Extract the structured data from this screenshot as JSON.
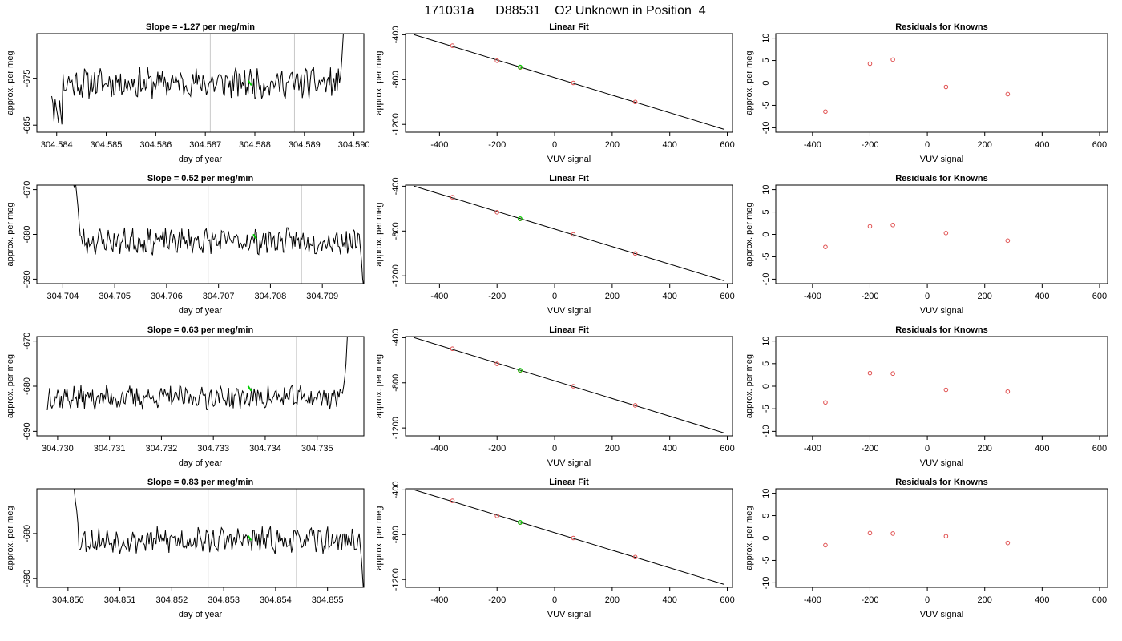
{
  "title": "171031a      D88531    O2 Unknown in Position  4",
  "colors": {
    "trace": "#000000",
    "marker_green": "#00cc00",
    "point_red": "#e05050",
    "vline_gray": "#c8c8c8"
  },
  "chart_data": [
    {
      "type": "line",
      "title": "Slope =  -1.27  per meg/min",
      "xlabel": "day of year",
      "ylabel": "approx. per meg",
      "xlim": [
        304.5836,
        304.5902
      ],
      "ylim": [
        -686.5,
        -665.5
      ],
      "xticks": [
        304.584,
        304.585,
        304.586,
        304.587,
        304.588,
        304.589,
        304.59
      ],
      "xtick_labels": [
        "304.584",
        "304.585",
        "304.586",
        "304.587",
        "304.588",
        "304.589",
        "304.590"
      ],
      "yticks": [
        -685,
        -675
      ],
      "ytick_labels": [
        "-685",
        "-675"
      ],
      "vlines": [
        304.5871,
        304.5888
      ],
      "series": [
        {
          "x_start": 304.5839,
          "x_end": 304.5898,
          "baseline": -676.0,
          "start_values": [
            -678.5,
            -680.0,
            -684.0,
            -679.0,
            -681.5,
            -683.0,
            -684.0,
            -680.0,
            -682.0,
            -684.5
          ],
          "end_values": [
            -676.0,
            -674.5,
            -671.0,
            -667.0,
            -663.0
          ],
          "amplitude": 2.8,
          "seed": 11,
          "n": 260
        }
      ],
      "marker": {
        "x": 304.5879,
        "y": -676.0
      }
    },
    {
      "type": "scatter",
      "title": "Linear Fit",
      "xlabel": "VUV signal",
      "ylabel": "approx. per meg",
      "xlim": [
        -518,
        618
      ],
      "ylim": [
        -1270,
        -390
      ],
      "xticks": [
        -400,
        -200,
        0,
        200,
        400,
        600
      ],
      "xtick_labels": [
        "-400",
        "-200",
        "0",
        "200",
        "400",
        "600"
      ],
      "yticks": [
        -400,
        -800,
        -1200
      ],
      "ytick_labels": [
        "-400",
        "-800",
        "-1200"
      ],
      "points": [
        {
          "x": -355,
          "y": -498
        },
        {
          "x": -200,
          "y": -632
        },
        {
          "x": -120,
          "y": -692
        },
        {
          "x": 65,
          "y": -830
        },
        {
          "x": 280,
          "y": -1000
        }
      ],
      "fit_line": {
        "x": [
          -490,
          590
        ],
        "y": [
          -398,
          -1245
        ]
      },
      "marker": {
        "x": -120,
        "y": -688
      }
    },
    {
      "type": "scatter",
      "title": "Residuals for Knowns",
      "xlabel": "VUV signal",
      "ylabel": "approx. per meg",
      "xlim": [
        -528,
        628
      ],
      "ylim": [
        -11,
        11
      ],
      "xticks": [
        -400,
        -200,
        0,
        200,
        400,
        600
      ],
      "xtick_labels": [
        "-400",
        "-200",
        "0",
        "200",
        "400",
        "600"
      ],
      "yticks": [
        10,
        5,
        0,
        -5,
        -10
      ],
      "ytick_labels": [
        "10",
        "5",
        "0",
        "-5",
        "-10"
      ],
      "points": [
        {
          "x": -355,
          "y": -6.4
        },
        {
          "x": -200,
          "y": 4.3
        },
        {
          "x": -120,
          "y": 5.2
        },
        {
          "x": 65,
          "y": -0.9
        },
        {
          "x": 280,
          "y": -2.5
        }
      ]
    },
    {
      "type": "line",
      "title": "Slope =  0.52  per meg/min",
      "xlabel": "day of year",
      "ylabel": "approx. per meg",
      "xlim": [
        304.7035,
        304.7098
      ],
      "ylim": [
        -691,
        -669
      ],
      "xticks": [
        304.704,
        304.705,
        304.706,
        304.707,
        304.708,
        304.709
      ],
      "xtick_labels": [
        "304.704",
        "304.705",
        "304.706",
        "304.707",
        "304.708",
        "304.709"
      ],
      "yticks": [
        -670,
        -680,
        -690
      ],
      "ytick_labels": [
        "-670",
        "-680",
        "-690"
      ],
      "vlines": [
        304.7068,
        304.7086
      ],
      "series": [
        {
          "x_start": 304.7042,
          "x_end": 304.7098,
          "baseline": -681.5,
          "start_values": [
            -668.0,
            -669.5,
            -668.5,
            -671.0,
            -674.0,
            -677.5,
            -680.0
          ],
          "end_values": [
            -680.0,
            -683.0,
            -686.0,
            -690.0,
            -692.0
          ],
          "amplitude": 2.4,
          "seed": 23,
          "n": 250
        }
      ],
      "marker": {
        "x": 304.7077,
        "y": -680.5
      }
    },
    {
      "type": "scatter",
      "title": "Linear Fit",
      "xlabel": "VUV signal",
      "ylabel": "approx. per meg",
      "xlim": [
        -518,
        618
      ],
      "ylim": [
        -1270,
        -390
      ],
      "xticks": [
        -400,
        -200,
        0,
        200,
        400,
        600
      ],
      "xtick_labels": [
        "-400",
        "-200",
        "0",
        "200",
        "400",
        "600"
      ],
      "yticks": [
        -400,
        -800,
        -1200
      ],
      "ytick_labels": [
        "-400",
        "-800",
        "-1200"
      ],
      "points": [
        {
          "x": -355,
          "y": -498
        },
        {
          "x": -200,
          "y": -632
        },
        {
          "x": -120,
          "y": -692
        },
        {
          "x": 65,
          "y": -830
        },
        {
          "x": 280,
          "y": -1000
        }
      ],
      "fit_line": {
        "x": [
          -490,
          590
        ],
        "y": [
          -398,
          -1245
        ]
      },
      "marker": {
        "x": -120,
        "y": -690
      }
    },
    {
      "type": "scatter",
      "title": "Residuals for Knowns",
      "xlabel": "VUV signal",
      "ylabel": "approx. per meg",
      "xlim": [
        -528,
        628
      ],
      "ylim": [
        -11,
        11
      ],
      "xticks": [
        -400,
        -200,
        0,
        200,
        400,
        600
      ],
      "xtick_labels": [
        "-400",
        "-200",
        "0",
        "200",
        "400",
        "600"
      ],
      "yticks": [
        10,
        5,
        0,
        -5,
        -10
      ],
      "ytick_labels": [
        "10",
        "5",
        "0",
        "-5",
        "-10"
      ],
      "points": [
        {
          "x": -355,
          "y": -2.8
        },
        {
          "x": -200,
          "y": 1.8
        },
        {
          "x": -120,
          "y": 2.1
        },
        {
          "x": 65,
          "y": 0.3
        },
        {
          "x": 280,
          "y": -1.4
        }
      ]
    },
    {
      "type": "line",
      "title": "Slope =  0.63  per meg/min",
      "xlabel": "day of year",
      "ylabel": "approx. per meg",
      "xlim": [
        304.7296,
        304.7359
      ],
      "ylim": [
        -691,
        -669
      ],
      "xticks": [
        304.73,
        304.731,
        304.732,
        304.733,
        304.734,
        304.735
      ],
      "xtick_labels": [
        "304.730",
        "304.731",
        "304.732",
        "304.733",
        "304.734",
        "304.735"
      ],
      "yticks": [
        -670,
        -680,
        -690
      ],
      "ytick_labels": [
        "-670",
        "-680",
        "-690"
      ],
      "vlines": [
        304.7329,
        304.7346
      ],
      "series": [
        {
          "x_start": 304.7298,
          "x_end": 304.7356,
          "baseline": -682.5,
          "start_values": [
            -685.0,
            -683.0,
            -680.0
          ],
          "end_values": [
            -680.0,
            -678.0,
            -675.0,
            -670.0,
            -665.0
          ],
          "amplitude": 2.2,
          "seed": 37,
          "n": 260
        }
      ],
      "marker": {
        "x": 304.7337,
        "y": -680.5
      }
    },
    {
      "type": "scatter",
      "title": "Linear Fit",
      "xlabel": "VUV signal",
      "ylabel": "approx. per meg",
      "xlim": [
        -518,
        618
      ],
      "ylim": [
        -1270,
        -390
      ],
      "xticks": [
        -400,
        -200,
        0,
        200,
        400,
        600
      ],
      "xtick_labels": [
        "-400",
        "-200",
        "0",
        "200",
        "400",
        "600"
      ],
      "yticks": [
        -400,
        -800,
        -1200
      ],
      "ytick_labels": [
        "-400",
        "-800",
        "-1200"
      ],
      "points": [
        {
          "x": -355,
          "y": -498
        },
        {
          "x": -200,
          "y": -632
        },
        {
          "x": -120,
          "y": -692
        },
        {
          "x": 65,
          "y": -830
        },
        {
          "x": 280,
          "y": -1000
        }
      ],
      "fit_line": {
        "x": [
          -490,
          590
        ],
        "y": [
          -398,
          -1245
        ]
      },
      "marker": {
        "x": -120,
        "y": -688
      }
    },
    {
      "type": "scatter",
      "title": "Residuals for Knowns",
      "xlabel": "VUV signal",
      "ylabel": "approx. per meg",
      "xlim": [
        -528,
        628
      ],
      "ylim": [
        -11,
        11
      ],
      "xticks": [
        -400,
        -200,
        0,
        200,
        400,
        600
      ],
      "xtick_labels": [
        "-400",
        "-200",
        "0",
        "200",
        "400",
        "600"
      ],
      "yticks": [
        10,
        5,
        0,
        -5,
        -10
      ],
      "ytick_labels": [
        "10",
        "5",
        "0",
        "-5",
        "-10"
      ],
      "points": [
        {
          "x": -355,
          "y": -3.6
        },
        {
          "x": -200,
          "y": 2.9
        },
        {
          "x": -120,
          "y": 2.8
        },
        {
          "x": 65,
          "y": -0.8
        },
        {
          "x": 280,
          "y": -1.2
        }
      ]
    },
    {
      "type": "line",
      "title": "Slope =  0.83  per meg/min",
      "xlabel": "day of year",
      "ylabel": "approx. per meg",
      "xlim": [
        304.8494,
        304.8557
      ],
      "ylim": [
        -692,
        -670
      ],
      "xticks": [
        304.85,
        304.851,
        304.852,
        304.853,
        304.854,
        304.855
      ],
      "xtick_labels": [
        "304.850",
        "304.851",
        "304.852",
        "304.853",
        "304.854",
        "304.855"
      ],
      "yticks": [
        -680,
        -690
      ],
      "ytick_labels": [
        "-680",
        "-690"
      ],
      "vlines": [
        304.8527,
        304.8544
      ],
      "series": [
        {
          "x_start": 304.8501,
          "x_end": 304.8557,
          "baseline": -681.5,
          "start_values": [
            -668.0,
            -670.0,
            -672.5,
            -675.0,
            -678.0
          ],
          "end_values": [
            -680.0,
            -683.0,
            -686.0,
            -690.0,
            -694.0
          ],
          "amplitude": 2.4,
          "seed": 53,
          "n": 250
        }
      ],
      "marker": {
        "x": 304.8535,
        "y": -681.0
      }
    },
    {
      "type": "scatter",
      "title": "Linear Fit",
      "xlabel": "VUV signal",
      "ylabel": "approx. per meg",
      "xlim": [
        -518,
        618
      ],
      "ylim": [
        -1270,
        -390
      ],
      "xticks": [
        -400,
        -200,
        0,
        200,
        400,
        600
      ],
      "xtick_labels": [
        "-400",
        "-200",
        "0",
        "200",
        "400",
        "600"
      ],
      "yticks": [
        -400,
        -800,
        -1200
      ],
      "ytick_labels": [
        "-400",
        "-800",
        "-1200"
      ],
      "points": [
        {
          "x": -355,
          "y": -498
        },
        {
          "x": -200,
          "y": -632
        },
        {
          "x": -120,
          "y": -692
        },
        {
          "x": 65,
          "y": -830
        },
        {
          "x": 280,
          "y": -1000
        }
      ],
      "fit_line": {
        "x": [
          -490,
          590
        ],
        "y": [
          -398,
          -1245
        ]
      },
      "marker": {
        "x": -120,
        "y": -690
      }
    },
    {
      "type": "scatter",
      "title": "Residuals for Knowns",
      "xlabel": "VUV signal",
      "ylabel": "approx. per meg",
      "xlim": [
        -528,
        628
      ],
      "ylim": [
        -11,
        11
      ],
      "xticks": [
        -400,
        -200,
        0,
        200,
        400,
        600
      ],
      "xtick_labels": [
        "-400",
        "-200",
        "0",
        "200",
        "400",
        "600"
      ],
      "yticks": [
        10,
        5,
        0,
        -5,
        -10
      ],
      "ytick_labels": [
        "10",
        "5",
        "0",
        "-5",
        "-10"
      ],
      "points": [
        {
          "x": -355,
          "y": -1.6
        },
        {
          "x": -200,
          "y": 1.1
        },
        {
          "x": -120,
          "y": 1.0
        },
        {
          "x": 65,
          "y": 0.4
        },
        {
          "x": 280,
          "y": -1.1
        }
      ]
    }
  ]
}
